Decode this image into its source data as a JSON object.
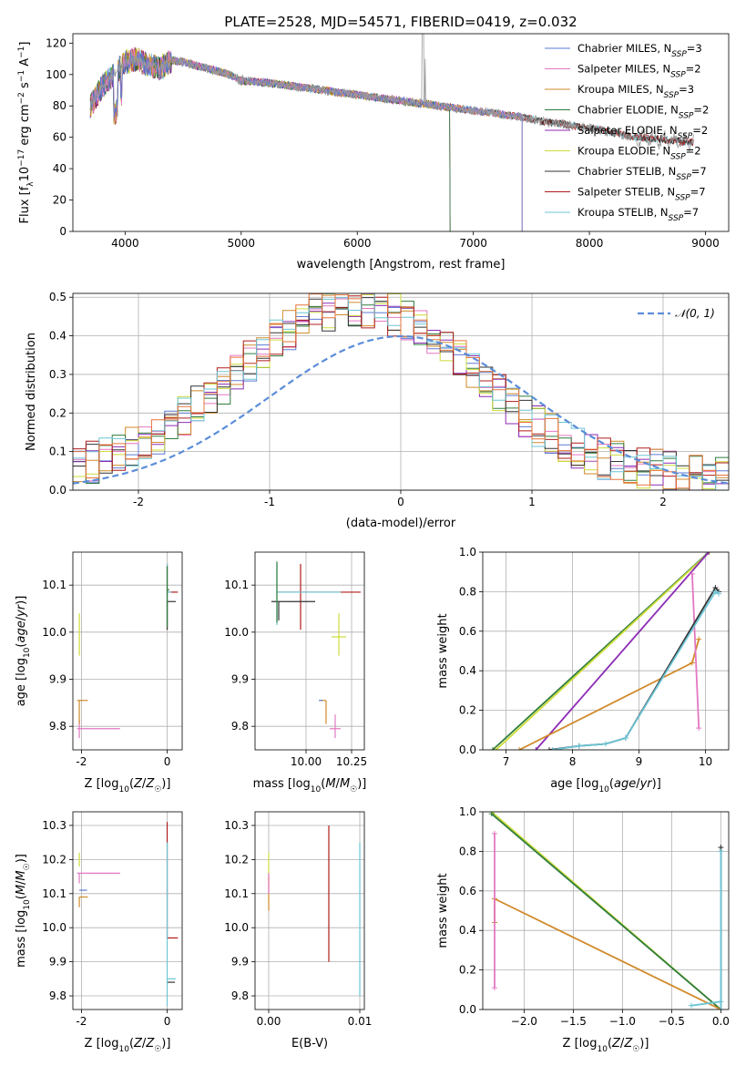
{
  "figure": {
    "title": "PLATE=2528, MJD=54571, FIBERID=0419, z=0.032"
  },
  "colors": {
    "chabrier_miles": "#5b7bd5",
    "salpeter_miles": "#e377c2",
    "kroupa_miles": "#d08a2a",
    "chabrier_elodie": "#2f7d3d",
    "salpeter_elodie": "#8c2bb5",
    "kroupa_elodie": "#cddc39",
    "chabrier_stelib": "#333333",
    "salpeter_stelib": "#b01c1c",
    "kroupa_stelib": "#6cc5d6",
    "normal_curve": "#5b8dd9",
    "grid": "#b0b0b0"
  },
  "chart_data": [
    {
      "id": "spectrum",
      "type": "line",
      "title": "PLATE=2528, MJD=54571, FIBERID=0419, z=0.032",
      "xlabel": "wavelength [Angstrom, rest frame]",
      "ylabel": "Flux [fλ10⁻¹⁷ erg cm⁻² s⁻¹ A⁻¹]",
      "xlim": [
        3550,
        9200
      ],
      "ylim": [
        0,
        126
      ],
      "xticks": [
        4000,
        5000,
        6000,
        7000,
        8000,
        9000
      ],
      "yticks": [
        0,
        20,
        40,
        60,
        80,
        100,
        120
      ],
      "grid": false,
      "legend_position": "top-right",
      "data": {
        "x": [
          3700,
          3800,
          3900,
          4000,
          4100,
          4200,
          4300,
          4400,
          4500,
          4600,
          4700,
          4800,
          4900,
          5000,
          5200,
          5400,
          5600,
          5800,
          6000,
          6200,
          6400,
          6600,
          6800,
          7000,
          7200,
          7400,
          7600,
          7800,
          8000,
          8200,
          8400,
          8600,
          8800,
          8900
        ],
        "y": [
          80,
          92,
          100,
          108,
          110,
          106,
          104,
          109,
          108,
          106,
          104,
          102,
          100,
          96,
          95,
          93,
          91,
          89,
          87,
          85,
          83,
          81,
          79,
          77,
          75,
          73,
          70,
          68,
          66,
          63,
          60,
          59,
          57,
          57
        ]
      },
      "series": [
        {
          "name": "Chabrier MILES, N_SSP=3",
          "color": "#5b7bd5",
          "x_end": 7420
        },
        {
          "name": "Salpeter MILES, N_SSP=2",
          "color": "#e377c2",
          "x_end": 7420
        },
        {
          "name": "Kroupa MILES, N_SSP=3",
          "color": "#d08a2a",
          "x_end": 7420
        },
        {
          "name": "Chabrier ELODIE, N_SSP=2",
          "color": "#2f7d3d",
          "x_end": 6800
        },
        {
          "name": "Salpeter ELODIE, N_SSP=2",
          "color": "#8c2bb5",
          "x_end": 6800
        },
        {
          "name": "Kroupa ELODIE, N_SSP=2",
          "color": "#cddc39",
          "x_end": 6800
        },
        {
          "name": "Chabrier STELIB, N_SSP=7",
          "color": "#333333",
          "x_end": 8900
        },
        {
          "name": "Salpeter STELIB, N_SSP=7",
          "color": "#b01c1c",
          "x_end": 8900
        },
        {
          "name": "Kroupa STELIB, N_SSP=7",
          "color": "#6cc5d6",
          "x_end": 8900
        }
      ],
      "legend_labels": [
        "Chabrier MILES, N_SSP=3",
        "Salpeter MILES, N_SSP=2",
        "Kroupa MILES, N_SSP=3",
        "Chabrier ELODIE, N_SSP=2",
        "Salpeter ELODIE, N_SSP=2",
        "Kroupa ELODIE, N_SSP=2",
        "Chabrier STELIB, N_SSP=7",
        "Salpeter STELIB, N_SSP=7",
        "Kroupa STELIB, N_SSP=7"
      ]
    },
    {
      "id": "residuals",
      "type": "line",
      "xlabel": "(data-model)/error",
      "ylabel": "Normed distribution",
      "xlim": [
        -2.5,
        2.5
      ],
      "ylim": [
        0,
        0.51
      ],
      "xticks": [
        -2,
        -1,
        0,
        1,
        2
      ],
      "yticks": [
        0.0,
        0.1,
        0.2,
        0.3,
        0.4,
        0.5
      ],
      "grid": true,
      "legend_position": "top-right",
      "legend_label": "𝒩(0, 1)",
      "normal": {
        "mean": 0,
        "sigma": 1
      },
      "histogram_bins": 50,
      "histogram_mean": -0.35,
      "histogram_sigma": 0.9
    },
    {
      "id": "age_vs_Z",
      "type": "scatter",
      "xlabel": "Z [log10(Z/Z☉)]",
      "ylabel": "age  [log10(age/yr)]",
      "xlim": [
        -2.2,
        0.35
      ],
      "ylim": [
        9.75,
        10.17
      ],
      "xticks": [
        -2,
        0
      ],
      "yticks": [
        9.8,
        9.9,
        10.0,
        10.1
      ],
      "grid": true,
      "points": [
        {
          "x": -2.05,
          "y": 9.795,
          "xerr": [
            0.05,
            0.95
          ],
          "yerr": [
            0.02,
            0.02
          ],
          "color": "#e377c2"
        },
        {
          "x": -2.05,
          "y": 9.855,
          "xerr": [
            0.05,
            0.2
          ],
          "yerr": [
            0.05,
            0.0
          ],
          "color": "#d08a2a"
        },
        {
          "x": -2.05,
          "y": 9.99,
          "xerr": [
            0.0,
            0.0
          ],
          "yerr": [
            0.04,
            0.05
          ],
          "color": "#cddc39"
        },
        {
          "x": 0.0,
          "y": 10.085,
          "xerr": [
            0.0,
            0.25
          ],
          "yerr": [
            0.08,
            0.06
          ],
          "color": "#b01c1c"
        },
        {
          "x": 0.0,
          "y": 10.065,
          "xerr": [
            0.0,
            0.2
          ],
          "yerr": [
            0.06,
            0.0
          ],
          "color": "#333333"
        },
        {
          "x": 0.0,
          "y": 10.085,
          "xerr": [
            0.0,
            0.1
          ],
          "yerr": [
            0.07,
            0.06
          ],
          "color": "#6cc5d6"
        },
        {
          "x": 0.0,
          "y": 10.09,
          "xerr": [
            0.0,
            0.05
          ],
          "yerr": [
            0.08,
            0.05
          ],
          "color": "#2f7d3d"
        }
      ]
    },
    {
      "id": "age_vs_mass",
      "type": "scatter",
      "xlabel": "mass [log10(M/M☉)]",
      "xlim": [
        9.72,
        10.32
      ],
      "ylim": [
        9.75,
        10.17
      ],
      "xticks": [
        10.0,
        10.25
      ],
      "yticks": [
        9.8,
        9.9,
        10.0,
        10.1
      ],
      "grid": true,
      "points": [
        {
          "x": 10.16,
          "y": 9.795,
          "xerr": [
            0.03,
            0.03
          ],
          "yerr": [
            0.02,
            0.03
          ],
          "color": "#e377c2"
        },
        {
          "x": 10.11,
          "y": 9.855,
          "xerr": [
            0.03,
            0.0
          ],
          "yerr": [
            0.05,
            0.0
          ],
          "color": "#d08a2a"
        },
        {
          "x": 10.09,
          "y": 9.855,
          "xerr": [
            0.02,
            0.0
          ],
          "yerr": [
            0.0,
            0.0
          ],
          "color": "#5b7bd5"
        },
        {
          "x": 10.18,
          "y": 9.99,
          "xerr": [
            0.04,
            0.04
          ],
          "yerr": [
            0.04,
            0.05
          ],
          "color": "#cddc39"
        },
        {
          "x": 9.97,
          "y": 10.085,
          "xerr": [
            0.13,
            0.33
          ],
          "yerr": [
            0.08,
            0.06
          ],
          "color": "#b01c1c"
        },
        {
          "x": 9.85,
          "y": 10.065,
          "xerr": [
            0.04,
            0.2
          ],
          "yerr": [
            0.04,
            0.0
          ],
          "color": "#333333"
        },
        {
          "x": 9.84,
          "y": 10.085,
          "xerr": [
            0.0,
            0.35
          ],
          "yerr": [
            0.07,
            0.06
          ],
          "color": "#6cc5d6"
        },
        {
          "x": 9.84,
          "y": 10.09,
          "xerr": [
            0.0,
            0.0
          ],
          "yerr": [
            0.07,
            0.06
          ],
          "color": "#2f7d3d"
        }
      ]
    },
    {
      "id": "weight_vs_age",
      "type": "line",
      "xlabel": "age  [log10(age/yr)]",
      "ylabel": "mass weight",
      "xlim": [
        6.65,
        10.35
      ],
      "ylim": [
        0,
        1
      ],
      "xticks": [
        7,
        8,
        9,
        10
      ],
      "yticks": [
        0.0,
        0.2,
        0.4,
        0.6,
        0.8,
        1.0
      ],
      "grid": true,
      "series": [
        {
          "color": "#2f7d3d",
          "x": [
            6.8,
            10.05
          ],
          "y": [
            0.0,
            1.0
          ]
        },
        {
          "color": "#cddc39",
          "x": [
            6.85,
            10.06
          ],
          "y": [
            0.0,
            1.0
          ]
        },
        {
          "color": "#8c2bb5",
          "x": [
            7.45,
            10.05
          ],
          "y": [
            0.0,
            1.0
          ]
        },
        {
          "color": "#d08a2a",
          "x": [
            7.2,
            9.8,
            9.9
          ],
          "y": [
            0.0,
            0.44,
            0.56
          ]
        },
        {
          "color": "#e377c2",
          "x": [
            9.8,
            9.9
          ],
          "y": [
            0.89,
            0.11
          ]
        },
        {
          "color": "#333333",
          "x": [
            7.65,
            8.1,
            8.5,
            8.8,
            10.15,
            10.2
          ],
          "y": [
            0.0,
            0.02,
            0.03,
            0.06,
            0.82,
            0.8
          ]
        },
        {
          "color": "#6cc5d6",
          "x": [
            7.7,
            8.1,
            8.5,
            8.8,
            10.15,
            10.2
          ],
          "y": [
            0.0,
            0.02,
            0.03,
            0.06,
            0.8,
            0.79
          ]
        }
      ]
    },
    {
      "id": "mass_vs_Z",
      "type": "scatter",
      "xlabel": "Z [log10(Z/Z☉)]",
      "ylabel": "mass [log10(M/M☉)]",
      "xlim": [
        -2.2,
        0.35
      ],
      "ylim": [
        9.76,
        10.34
      ],
      "xticks": [
        -2,
        0
      ],
      "yticks": [
        9.8,
        9.9,
        10.0,
        10.1,
        10.2,
        10.3
      ],
      "grid": true,
      "points": [
        {
          "x": -2.05,
          "y": 10.16,
          "xerr": [
            0.05,
            0.95
          ],
          "yerr": [
            0.03,
            0.0
          ],
          "color": "#e377c2"
        },
        {
          "x": -2.05,
          "y": 10.09,
          "xerr": [
            0.0,
            0.2
          ],
          "yerr": [
            0.03,
            0.0
          ],
          "color": "#d08a2a"
        },
        {
          "x": -2.05,
          "y": 10.11,
          "xerr": [
            0.0,
            0.18
          ],
          "yerr": [
            0.0,
            0.0
          ],
          "color": "#5b7bd5"
        },
        {
          "x": -2.05,
          "y": 10.18,
          "xerr": [
            0.0,
            0.0
          ],
          "yerr": [
            0.0,
            0.04
          ],
          "color": "#cddc39"
        },
        {
          "x": 0.0,
          "y": 9.97,
          "xerr": [
            0.0,
            0.25
          ],
          "yerr": [
            0.0,
            0.34
          ],
          "color": "#b01c1c"
        },
        {
          "x": 0.0,
          "y": 9.84,
          "xerr": [
            0.0,
            0.18
          ],
          "yerr": [
            0.0,
            0.0
          ],
          "color": "#333333"
        },
        {
          "x": 0.0,
          "y": 9.85,
          "xerr": [
            0.0,
            0.2
          ],
          "yerr": [
            0.08,
            0.4
          ],
          "color": "#6cc5d6"
        }
      ]
    },
    {
      "id": "mass_vs_ebv",
      "type": "scatter",
      "xlabel": "E(B-V)",
      "xlim": [
        -0.0015,
        0.0105
      ],
      "ylim": [
        9.76,
        10.34
      ],
      "xticks": [
        0.0,
        0.01
      ],
      "yticks": [
        9.8,
        9.9,
        10.0,
        10.1,
        10.2,
        10.3
      ],
      "grid": true,
      "points": [
        {
          "x": 0.0,
          "y": 10.1,
          "xerr": [
            0,
            0
          ],
          "yerr": [
            0.05,
            0.05
          ],
          "color": "#d08a2a"
        },
        {
          "x": 0.0,
          "y": 10.17,
          "xerr": [
            0,
            0
          ],
          "yerr": [
            0.04,
            0.05
          ],
          "color": "#cddc39"
        },
        {
          "x": 0.0,
          "y": 10.13,
          "xerr": [
            0,
            0
          ],
          "yerr": [
            0.03,
            0.03
          ],
          "color": "#e377c2"
        },
        {
          "x": 0.0066,
          "y": 10.1,
          "xerr": [
            0,
            0
          ],
          "yerr": [
            0.2,
            0.2
          ],
          "color": "#b01c1c"
        },
        {
          "x": 0.01,
          "y": 10.0,
          "xerr": [
            0,
            0
          ],
          "yerr": [
            0.2,
            0.25
          ],
          "color": "#6cc5d6"
        }
      ]
    },
    {
      "id": "weight_vs_Z",
      "type": "line",
      "xlabel": "Z [log10(Z/Z☉)]",
      "ylabel": "mass weight",
      "xlim": [
        -2.42,
        0.08
      ],
      "ylim": [
        0,
        1
      ],
      "xticks": [
        -2.0,
        -1.5,
        -1.0,
        -0.5,
        0.0
      ],
      "yticks": [
        0.0,
        0.2,
        0.4,
        0.6,
        0.8,
        1.0
      ],
      "grid": true,
      "series": [
        {
          "color": "#cddc39",
          "x": [
            -2.33,
            0.0
          ],
          "y": [
            1.0,
            0.0
          ]
        },
        {
          "color": "#2f7d3d",
          "x": [
            -2.33,
            0.0
          ],
          "y": [
            0.99,
            0.0
          ]
        },
        {
          "color": "#d08a2a",
          "x": [
            -2.3,
            0.0
          ],
          "y": [
            0.56,
            0.0
          ]
        },
        {
          "color": "#d08a2a",
          "x": [
            -2.3,
            -2.3
          ],
          "y": [
            0.44,
            0.56
          ]
        },
        {
          "color": "#e377c2",
          "x": [
            -2.3,
            -2.3
          ],
          "y": [
            0.11,
            0.89
          ]
        },
        {
          "color": "#333333",
          "x": [
            0.0,
            0.0
          ],
          "y": [
            0.0,
            0.82
          ]
        },
        {
          "color": "#6cc5d6",
          "x": [
            0.0,
            0.0
          ],
          "y": [
            0.0,
            0.8
          ]
        },
        {
          "color": "#6cc5d6",
          "x": [
            -0.3,
            0.0
          ],
          "y": [
            0.02,
            0.04
          ]
        }
      ]
    }
  ]
}
